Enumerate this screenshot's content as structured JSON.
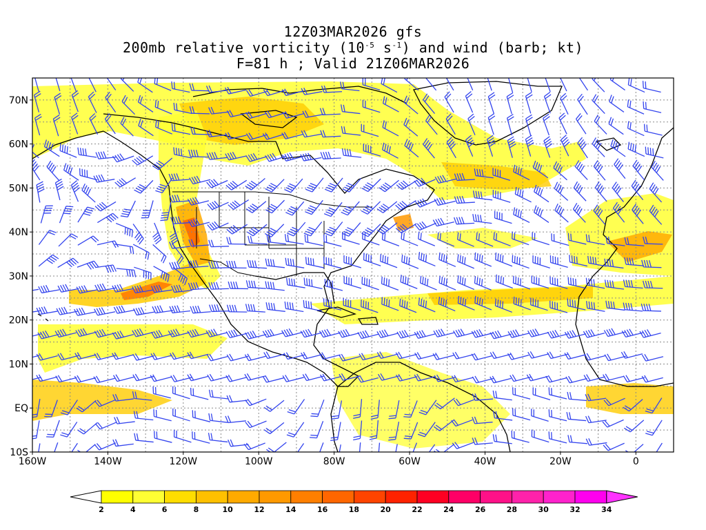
{
  "title": {
    "line1": "12Z03MAR2026 gfs",
    "line2_prefix": "200mb relative vorticity (10",
    "line2_exp1": "-5",
    "line2_mid": " s",
    "line2_exp2": "-1",
    "line2_suffix": ") and wind (barb; kt)",
    "line3": "F=81 h ; Valid 21Z06MAR2026"
  },
  "axes": {
    "lat_labels": [
      "70N",
      "60N",
      "50N",
      "40N",
      "30N",
      "20N",
      "10N",
      "EQ",
      "10S"
    ],
    "lon_labels": [
      "160W",
      "140W",
      "120W",
      "100W",
      "80W",
      "60W",
      "40W",
      "20W",
      "0"
    ],
    "lat_range": [
      -10,
      75
    ],
    "lon_range": [
      -160,
      10
    ],
    "grid": true
  },
  "colorbar": {
    "labels": [
      "2",
      "4",
      "6",
      "8",
      "10",
      "12",
      "14",
      "16",
      "18",
      "20",
      "22",
      "24",
      "26",
      "28",
      "30",
      "32",
      "34"
    ],
    "colors": [
      "#ffff00",
      "#ffff33",
      "#ffdd00",
      "#ffc000",
      "#ffaa00",
      "#ff9900",
      "#ff7f00",
      "#ff6600",
      "#ff4400",
      "#ff2200",
      "#ff0022",
      "#ff0066",
      "#ff1188",
      "#ff22aa",
      "#ff22cc",
      "#ff00ee"
    ],
    "over_color": "#ff33ff",
    "under_color": "#ffffff"
  },
  "colors": {
    "barb": "#3344ee",
    "vort_low": "#ffff33",
    "vort_mid": "#ffcc00",
    "vort_high": "#ff7700",
    "vort_max": "#ff3300",
    "coast": "#000000"
  }
}
